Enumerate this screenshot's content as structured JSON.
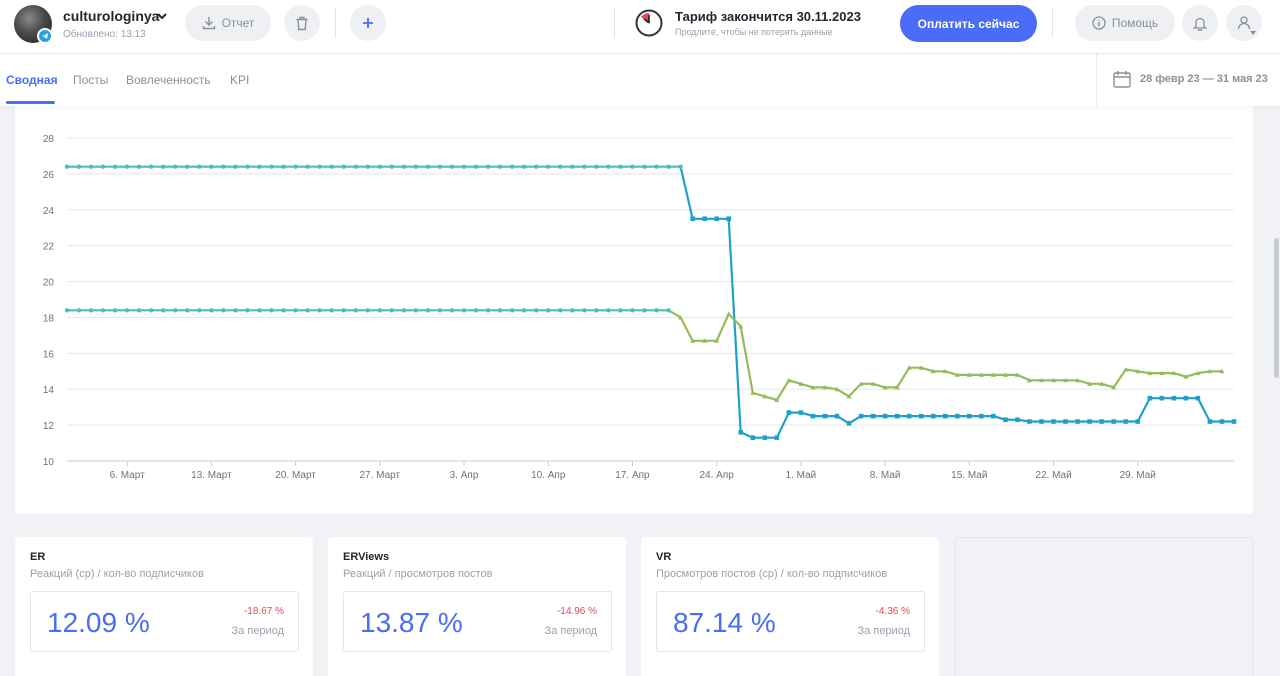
{
  "account": {
    "name": "culturologinya",
    "updated": "Обновлено: 13:13",
    "avatar_icon": "avatar",
    "badge_icon": "telegram-icon"
  },
  "toolbar": {
    "report_label": "Отчет",
    "delete_icon": "trash-icon",
    "add_icon": "plus-icon"
  },
  "tariff": {
    "title": "Тариф закончится 30.11.2023",
    "subtitle": "Продлите, чтобы не потерять данные",
    "pay_label": "Оплатить сейчас"
  },
  "help": {
    "label": "Помощь"
  },
  "tabs": [
    {
      "label": "Сводная",
      "active": true
    },
    {
      "label": "Посты",
      "active": false
    },
    {
      "label": "Вовлеченность",
      "active": false
    },
    {
      "label": "KPI",
      "active": false
    }
  ],
  "date_range": "28 февр 23 — 31 мая 23",
  "colors": {
    "accent": "#4a6cf7",
    "series_blue": "#1ea0c8",
    "series_green": "#96bb5c",
    "series_teal": "#4dbfb2",
    "negative": "#e04a5a"
  },
  "chart_data": {
    "type": "line",
    "ylim": [
      10,
      28
    ],
    "yticks": [
      10,
      12,
      14,
      16,
      18,
      20,
      22,
      24,
      26,
      28
    ],
    "xticks": [
      "6. Март",
      "13. Март",
      "20. Март",
      "27. Март",
      "3. Апр",
      "10. Апр",
      "17. Апр",
      "24. Апр",
      "1. Май",
      "8. Май",
      "15. Май",
      "22. Май",
      "29. Май"
    ],
    "xtick_days": [
      6,
      13,
      20,
      27,
      34,
      41,
      48,
      55,
      62,
      69,
      76,
      83,
      90
    ],
    "grid": true,
    "series": [
      {
        "color": "#1ea0c8",
        "points": [
          [
            1,
            26.4
          ],
          [
            2,
            26.4
          ],
          [
            3,
            26.4
          ],
          [
            4,
            26.4
          ],
          [
            5,
            26.4
          ],
          [
            6,
            26.4
          ],
          [
            7,
            26.4
          ],
          [
            8,
            26.4
          ],
          [
            9,
            26.4
          ],
          [
            10,
            26.4
          ],
          [
            11,
            26.4
          ],
          [
            12,
            26.4
          ],
          [
            13,
            26.4
          ],
          [
            14,
            26.4
          ],
          [
            15,
            26.4
          ],
          [
            16,
            26.4
          ],
          [
            17,
            26.4
          ],
          [
            18,
            26.4
          ],
          [
            19,
            26.4
          ],
          [
            20,
            26.4
          ],
          [
            21,
            26.4
          ],
          [
            22,
            26.4
          ],
          [
            23,
            26.4
          ],
          [
            24,
            26.4
          ],
          [
            25,
            26.4
          ],
          [
            26,
            26.4
          ],
          [
            27,
            26.4
          ],
          [
            28,
            26.4
          ],
          [
            29,
            26.4
          ],
          [
            30,
            26.4
          ],
          [
            31,
            26.4
          ],
          [
            32,
            26.4
          ],
          [
            33,
            26.4
          ],
          [
            34,
            26.4
          ],
          [
            35,
            26.4
          ],
          [
            36,
            26.4
          ],
          [
            37,
            26.4
          ],
          [
            38,
            26.4
          ],
          [
            39,
            26.4
          ],
          [
            40,
            26.4
          ],
          [
            41,
            26.4
          ],
          [
            42,
            26.4
          ],
          [
            43,
            26.4
          ],
          [
            44,
            26.4
          ],
          [
            45,
            26.4
          ],
          [
            46,
            26.4
          ],
          [
            47,
            26.4
          ],
          [
            48,
            26.4
          ],
          [
            49,
            26.4
          ],
          [
            50,
            26.4
          ],
          [
            51,
            26.4
          ],
          [
            52,
            26.4
          ],
          [
            53,
            23.5
          ],
          [
            54,
            23.5
          ],
          [
            55,
            23.5
          ],
          [
            56,
            23.5
          ],
          [
            57,
            11.6
          ],
          [
            58,
            11.3
          ],
          [
            59,
            11.3
          ],
          [
            60,
            11.3
          ],
          [
            61,
            12.7
          ],
          [
            62,
            12.7
          ],
          [
            63,
            12.5
          ],
          [
            64,
            12.5
          ],
          [
            65,
            12.5
          ],
          [
            66,
            12.1
          ],
          [
            67,
            12.5
          ],
          [
            68,
            12.5
          ],
          [
            69,
            12.5
          ],
          [
            70,
            12.5
          ],
          [
            71,
            12.5
          ],
          [
            72,
            12.5
          ],
          [
            73,
            12.5
          ],
          [
            74,
            12.5
          ],
          [
            75,
            12.5
          ],
          [
            76,
            12.5
          ],
          [
            77,
            12.5
          ],
          [
            78,
            12.5
          ],
          [
            79,
            12.3
          ],
          [
            80,
            12.3
          ],
          [
            81,
            12.2
          ],
          [
            82,
            12.2
          ],
          [
            83,
            12.2
          ],
          [
            84,
            12.2
          ],
          [
            85,
            12.2
          ],
          [
            86,
            12.2
          ],
          [
            87,
            12.2
          ],
          [
            88,
            12.2
          ],
          [
            89,
            12.2
          ],
          [
            90,
            12.2
          ],
          [
            91,
            13.5
          ],
          [
            92,
            13.5
          ],
          [
            93,
            13.5
          ],
          [
            94,
            13.5
          ],
          [
            95,
            13.5
          ],
          [
            96,
            12.2
          ],
          [
            97,
            12.2
          ],
          [
            98,
            12.2
          ]
        ]
      },
      {
        "color": "#96bb5c",
        "points": [
          [
            1,
            18.4
          ],
          [
            2,
            18.4
          ],
          [
            3,
            18.4
          ],
          [
            4,
            18.4
          ],
          [
            5,
            18.4
          ],
          [
            6,
            18.4
          ],
          [
            7,
            18.4
          ],
          [
            8,
            18.4
          ],
          [
            9,
            18.4
          ],
          [
            10,
            18.4
          ],
          [
            11,
            18.4
          ],
          [
            12,
            18.4
          ],
          [
            13,
            18.4
          ],
          [
            14,
            18.4
          ],
          [
            15,
            18.4
          ],
          [
            16,
            18.4
          ],
          [
            17,
            18.4
          ],
          [
            18,
            18.4
          ],
          [
            19,
            18.4
          ],
          [
            20,
            18.4
          ],
          [
            21,
            18.4
          ],
          [
            22,
            18.4
          ],
          [
            23,
            18.4
          ],
          [
            24,
            18.4
          ],
          [
            25,
            18.4
          ],
          [
            26,
            18.4
          ],
          [
            27,
            18.4
          ],
          [
            28,
            18.4
          ],
          [
            29,
            18.4
          ],
          [
            30,
            18.4
          ],
          [
            31,
            18.4
          ],
          [
            32,
            18.4
          ],
          [
            33,
            18.4
          ],
          [
            34,
            18.4
          ],
          [
            35,
            18.4
          ],
          [
            36,
            18.4
          ],
          [
            37,
            18.4
          ],
          [
            38,
            18.4
          ],
          [
            39,
            18.4
          ],
          [
            40,
            18.4
          ],
          [
            41,
            18.4
          ],
          [
            42,
            18.4
          ],
          [
            43,
            18.4
          ],
          [
            44,
            18.4
          ],
          [
            45,
            18.4
          ],
          [
            46,
            18.4
          ],
          [
            47,
            18.4
          ],
          [
            48,
            18.4
          ],
          [
            49,
            18.4
          ],
          [
            50,
            18.4
          ],
          [
            51,
            18.4
          ],
          [
            52,
            18.0
          ],
          [
            53,
            16.7
          ],
          [
            54,
            16.7
          ],
          [
            55,
            16.7
          ],
          [
            56,
            18.2
          ],
          [
            57,
            17.5
          ],
          [
            58,
            13.8
          ],
          [
            59,
            13.6
          ],
          [
            60,
            13.4
          ],
          [
            61,
            14.5
          ],
          [
            62,
            14.3
          ],
          [
            63,
            14.1
          ],
          [
            64,
            14.1
          ],
          [
            65,
            14.0
          ],
          [
            66,
            13.6
          ],
          [
            67,
            14.3
          ],
          [
            68,
            14.3
          ],
          [
            69,
            14.1
          ],
          [
            70,
            14.1
          ],
          [
            71,
            15.2
          ],
          [
            72,
            15.2
          ],
          [
            73,
            15.0
          ],
          [
            74,
            15.0
          ],
          [
            75,
            14.8
          ],
          [
            76,
            14.8
          ],
          [
            77,
            14.8
          ],
          [
            78,
            14.8
          ],
          [
            79,
            14.8
          ],
          [
            80,
            14.8
          ],
          [
            81,
            14.5
          ],
          [
            82,
            14.5
          ],
          [
            83,
            14.5
          ],
          [
            84,
            14.5
          ],
          [
            85,
            14.5
          ],
          [
            86,
            14.3
          ],
          [
            87,
            14.3
          ],
          [
            88,
            14.1
          ],
          [
            89,
            15.1
          ],
          [
            90,
            15.0
          ],
          [
            91,
            14.9
          ],
          [
            92,
            14.9
          ],
          [
            93,
            14.9
          ],
          [
            94,
            14.7
          ],
          [
            95,
            14.9
          ],
          [
            96,
            15.0
          ],
          [
            97,
            15.0
          ]
        ]
      }
    ]
  },
  "metrics": [
    {
      "title": "ER",
      "subtitle": "Реакций (ср) / кол-во подписчиков",
      "value": "12.09 %",
      "delta": "-18.67 %",
      "period": "За период"
    },
    {
      "title": "ERViews",
      "subtitle": "Реакций / просмотров постов",
      "value": "13.87 %",
      "delta": "-14.96 %",
      "period": "За период"
    },
    {
      "title": "VR",
      "subtitle": "Просмотров постов (ср) / кол-во подписчиков",
      "value": "87.14 %",
      "delta": "-4.36 %",
      "period": "За период"
    }
  ]
}
